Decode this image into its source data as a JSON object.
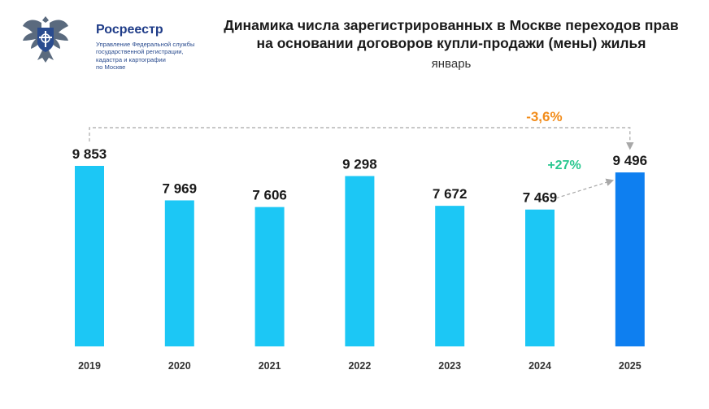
{
  "logo": {
    "name": "Росреестр",
    "subtitle_lines": [
      "Управление Федеральной службы",
      "государственной регистрации,",
      "кадастра и картографии",
      "по Москве"
    ]
  },
  "colors": {
    "bar": "#1cc7f5",
    "bar_highlight": "#0e7ff0",
    "change_total": "#f28c1a",
    "change_yoy": "#29c78f",
    "arrow": "#a8a8a8"
  },
  "chart_data": {
    "type": "bar",
    "title_lines": [
      "Динамика числа зарегистрированных в Москве переходов прав",
      "на основании договоров купли-продажи (мены) жилья"
    ],
    "subtitle": "январь",
    "categories": [
      "2019",
      "2020",
      "2021",
      "2022",
      "2023",
      "2024",
      "2025"
    ],
    "values": [
      9853,
      7969,
      7606,
      9298,
      7672,
      7469,
      9496
    ],
    "value_labels": [
      "9 853",
      "7 969",
      "7 606",
      "9 298",
      "7 672",
      "7 469",
      "9 496"
    ],
    "highlight_index": 6,
    "xlabel": "",
    "ylabel": "",
    "grid": false,
    "annotations": [
      {
        "name": "change-2019-2025",
        "text": "-3,6%",
        "from": "2019",
        "to": "2025"
      },
      {
        "name": "change-2024-2025",
        "text": "+27%",
        "from": "2024",
        "to": "2025"
      }
    ]
  }
}
